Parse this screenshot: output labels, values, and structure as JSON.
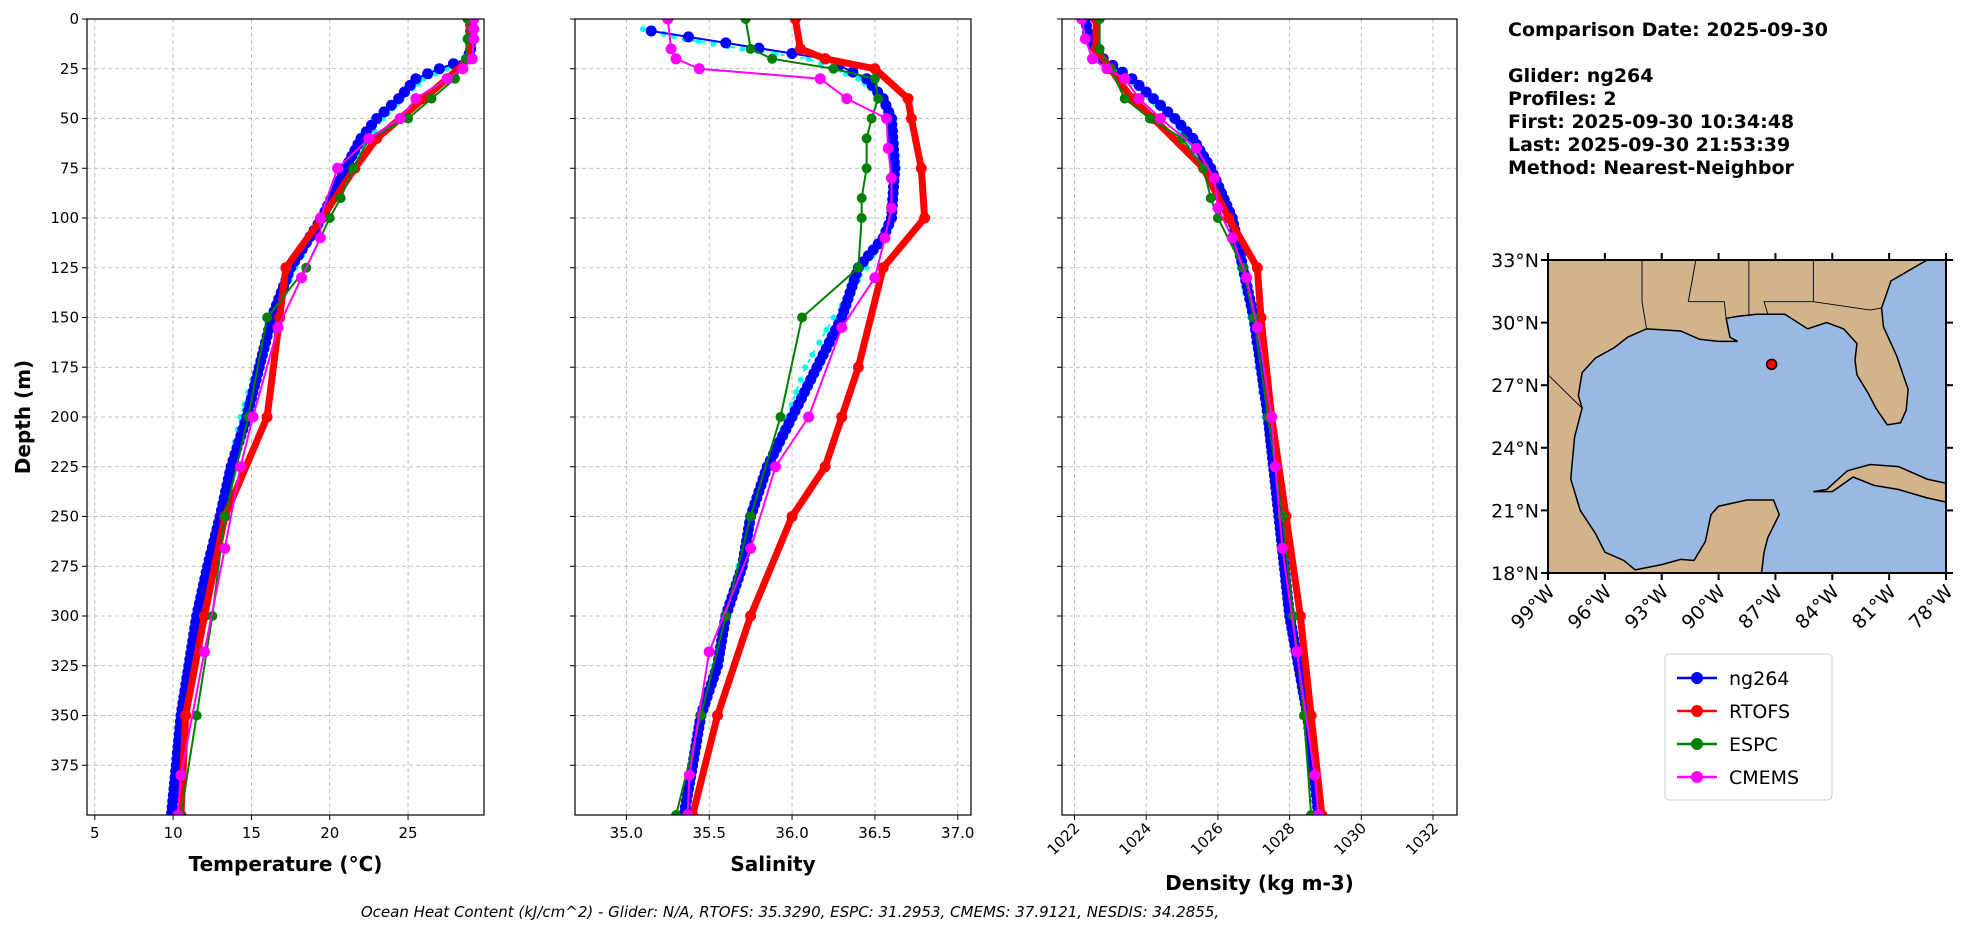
{
  "info": {
    "lines": [
      "Comparison Date: 2025-09-30",
      "",
      "Glider: ng264",
      "Profiles: 2",
      "First: 2025-09-30 10:34:48",
      "Last: 2025-09-30 21:53:39",
      "Method: Nearest-Neighbor"
    ]
  },
  "footer": "Ocean Heat Content (kJ/cm^2) - Glider: N/A,  RTOFS: 35.3290,  ESPC: 31.2953,  CMEMS: 37.9121,  NESDIS: 34.2855,",
  "legend": [
    {
      "label": "ng264",
      "color": "#0000ff"
    },
    {
      "label": "RTOFS",
      "color": "#ff0000"
    },
    {
      "label": "ESPC",
      "color": "#008000"
    },
    {
      "label": "CMEMS",
      "color": "#ff00ff"
    }
  ],
  "chart_data": [
    {
      "type": "line",
      "xlabel": "Temperature (°C)",
      "ylabel": "Depth (m)",
      "xlim": [
        4.5,
        29.85
      ],
      "ylim": [
        400,
        0
      ],
      "grid": true,
      "xticks": [
        "5",
        "10",
        "15",
        "20",
        "25"
      ],
      "yticks": [
        "0",
        "25",
        "50",
        "75",
        "100",
        "125",
        "150",
        "175",
        "200",
        "225",
        "250",
        "275",
        "300",
        "325",
        "350",
        "375"
      ],
      "series": [
        {
          "name": "NESDIS",
          "color": "#00ffff",
          "depth": [
            0,
            10,
            20,
            25,
            30,
            40,
            50,
            75,
            100,
            125,
            150,
            175,
            200,
            225,
            250,
            300,
            350,
            400
          ],
          "values": [
            29,
            29,
            28.9,
            27.5,
            26,
            24.6,
            23.4,
            21.2,
            19.6,
            17.8,
            16.4,
            15.3,
            14.3,
            13.6,
            13,
            11.6,
            10.6,
            10
          ]
        },
        {
          "name": "ng264",
          "color": "#0000ff",
          "depth": [
            0,
            15,
            20,
            25,
            30,
            40,
            50,
            60,
            75,
            100,
            125,
            150,
            175,
            200,
            225,
            250,
            275,
            300,
            325,
            350,
            375,
            399
          ],
          "values": [
            29,
            29,
            28.8,
            27,
            25.5,
            24.4,
            23,
            22,
            21,
            19.5,
            17.5,
            16.3,
            15.5,
            14.7,
            13.7,
            13,
            12.2,
            11.5,
            11,
            10.5,
            10.2,
            9.9
          ]
        },
        {
          "name": "RTOFS",
          "color": "#ff0000",
          "depth": [
            0,
            10,
            20,
            30,
            40,
            50,
            60,
            75,
            100,
            125,
            150,
            200,
            250,
            300,
            350,
            400
          ],
          "values": [
            28.9,
            28.9,
            28.9,
            27.5,
            26,
            24.5,
            23,
            21.6,
            19.5,
            17.2,
            16.8,
            16,
            13.3,
            12,
            10.8,
            10.5
          ]
        },
        {
          "name": "ESPC",
          "color": "#008000",
          "depth": [
            0,
            10,
            20,
            30,
            40,
            50,
            60,
            75,
            90,
            100,
            125,
            150,
            200,
            250,
            300,
            350,
            400
          ],
          "values": [
            28.8,
            28.8,
            28.7,
            28,
            26.5,
            25,
            22.5,
            21.5,
            20.7,
            20,
            18.5,
            16,
            14.8,
            13.3,
            12.5,
            11.5,
            10.5
          ]
        },
        {
          "name": "CMEMS",
          "color": "#ff00ff",
          "depth": [
            0,
            5,
            10,
            20,
            25,
            30,
            40,
            50,
            60,
            75,
            100,
            110,
            130,
            155,
            200,
            225,
            266,
            318,
            380,
            400
          ],
          "values": [
            29.2,
            29.2,
            29.2,
            29.1,
            28.5,
            27.5,
            25.5,
            24.5,
            22.5,
            20.5,
            19.4,
            19.4,
            18.2,
            16.7,
            15.1,
            14.3,
            13.3,
            12,
            10.5,
            10.3
          ]
        }
      ]
    },
    {
      "type": "line",
      "xlabel": "Salinity",
      "ylabel": "",
      "xlim": [
        34.69,
        37.08
      ],
      "ylim": [
        400,
        0
      ],
      "grid": true,
      "xticks": [
        "35.0",
        "35.5",
        "36.0",
        "36.5",
        "37.0"
      ],
      "series": [
        {
          "name": "NESDIS",
          "color": "#00ffff",
          "depth": [
            5,
            10,
            15,
            20,
            30,
            40,
            50,
            75,
            100,
            125,
            150,
            175,
            200,
            225,
            250,
            300,
            350,
            400
          ],
          "values": [
            35.1,
            35.35,
            35.7,
            36.1,
            36.4,
            36.55,
            36.62,
            36.64,
            36.6,
            36.45,
            36.25,
            36.08,
            35.97,
            35.85,
            35.75,
            35.6,
            35.45,
            35.35
          ]
        },
        {
          "name": "ng264",
          "color": "#0000ff",
          "depth": [
            6,
            12,
            20,
            30,
            40,
            50,
            75,
            100,
            110,
            125,
            150,
            175,
            200,
            225,
            250,
            275,
            300,
            325,
            350,
            375,
            399
          ],
          "values": [
            35.15,
            35.6,
            36.2,
            36.45,
            36.55,
            36.6,
            36.62,
            36.6,
            36.55,
            36.4,
            36.3,
            36.15,
            36.0,
            35.85,
            35.75,
            35.7,
            35.6,
            35.55,
            35.45,
            35.4,
            35.35
          ]
        },
        {
          "name": "RTOFS",
          "color": "#ff0000",
          "depth": [
            0,
            15,
            20,
            25,
            40,
            50,
            75,
            100,
            125,
            175,
            200,
            225,
            250,
            300,
            350,
            400
          ],
          "values": [
            36.02,
            36.05,
            36.2,
            36.5,
            36.7,
            36.72,
            36.78,
            36.8,
            36.55,
            36.4,
            36.3,
            36.2,
            36.0,
            35.75,
            35.55,
            35.4
          ]
        },
        {
          "name": "ESPC",
          "color": "#008000",
          "depth": [
            0,
            15,
            20,
            25,
            30,
            40,
            50,
            60,
            75,
            90,
            100,
            125,
            150,
            200,
            250,
            300,
            350,
            400
          ],
          "values": [
            35.72,
            35.75,
            35.88,
            36.25,
            36.5,
            36.52,
            36.48,
            36.45,
            36.45,
            36.42,
            36.42,
            36.4,
            36.06,
            35.93,
            35.75,
            35.6,
            35.45,
            35.3
          ]
        },
        {
          "name": "CMEMS",
          "color": "#ff00ff",
          "depth": [
            0,
            15,
            20,
            25,
            30,
            40,
            50,
            65,
            80,
            95,
            110,
            130,
            155,
            200,
            225,
            266,
            318,
            380,
            400
          ],
          "values": [
            35.25,
            35.27,
            35.3,
            35.44,
            36.17,
            36.33,
            36.57,
            36.58,
            36.6,
            36.6,
            36.56,
            36.5,
            36.3,
            36.1,
            35.9,
            35.75,
            35.5,
            35.38,
            35.37
          ]
        }
      ]
    },
    {
      "type": "line",
      "xlabel": "Density (kg m-3)",
      "ylabel": "",
      "xlim": [
        1021.65,
        1032.67
      ],
      "ylim": [
        400,
        0
      ],
      "grid": true,
      "xticks": [
        "1022",
        "1024",
        "1026",
        "1028",
        "1030",
        "1032"
      ],
      "series": [
        {
          "name": "NESDIS",
          "color": "#00ffff",
          "depth": [
            0,
            10,
            20,
            30,
            40,
            50,
            75,
            100,
            150,
            200,
            250,
            300,
            350,
            400
          ],
          "values": [
            1022.3,
            1022.4,
            1022.8,
            1023.5,
            1024.1,
            1024.7,
            1025.7,
            1026.3,
            1026.9,
            1027.3,
            1027.7,
            1028.0,
            1028.4,
            1028.8
          ]
        },
        {
          "name": "ng264",
          "color": "#0000ff",
          "depth": [
            0,
            10,
            20,
            30,
            40,
            50,
            60,
            75,
            100,
            125,
            150,
            175,
            200,
            250,
            300,
            350,
            399
          ],
          "values": [
            1022.3,
            1022.4,
            1022.8,
            1023.6,
            1024.2,
            1024.8,
            1025.3,
            1025.8,
            1026.4,
            1026.7,
            1027.0,
            1027.2,
            1027.4,
            1027.7,
            1028.0,
            1028.5,
            1028.8
          ]
        },
        {
          "name": "RTOFS",
          "color": "#ff0000",
          "depth": [
            0,
            15,
            25,
            40,
            50,
            75,
            100,
            125,
            150,
            200,
            250,
            300,
            350,
            400
          ],
          "values": [
            1022.6,
            1022.6,
            1023,
            1023.6,
            1024.2,
            1025.6,
            1026.3,
            1027.1,
            1027.2,
            1027.5,
            1027.9,
            1028.3,
            1028.6,
            1028.9
          ]
        },
        {
          "name": "ESPC",
          "color": "#008000",
          "depth": [
            0,
            15,
            25,
            40,
            50,
            60,
            75,
            90,
            100,
            125,
            150,
            200,
            250,
            300,
            350,
            400
          ],
          "values": [
            1022.7,
            1022.7,
            1023.0,
            1023.4,
            1024.1,
            1025.0,
            1025.6,
            1025.8,
            1026.0,
            1026.7,
            1027.0,
            1027.4,
            1027.8,
            1028.1,
            1028.4,
            1028.6
          ]
        },
        {
          "name": "CMEMS",
          "color": "#ff00ff",
          "depth": [
            0,
            10,
            20,
            25,
            30,
            40,
            50,
            65,
            80,
            95,
            110,
            130,
            155,
            200,
            225,
            266,
            318,
            380,
            400
          ],
          "values": [
            1022.2,
            1022.3,
            1022.5,
            1022.9,
            1023.4,
            1023.8,
            1024.4,
            1025.4,
            1025.9,
            1026.0,
            1026.4,
            1026.8,
            1027.1,
            1027.5,
            1027.6,
            1027.8,
            1028.2,
            1028.7,
            1028.8
          ]
        }
      ]
    }
  ],
  "map": {
    "lon_range": [
      -99,
      -78
    ],
    "lat_range": [
      18,
      33
    ],
    "lon_ticks": [
      "99°W",
      "96°W",
      "93°W",
      "90°W",
      "87°W",
      "84°W",
      "81°W",
      "78°W"
    ],
    "lat_ticks": [
      "18°N",
      "21°N",
      "24°N",
      "27°N",
      "30°N",
      "33°N"
    ],
    "land_color": "#d2b48c",
    "water_color": "#99b8e2",
    "glider_position": {
      "lon": -87.2,
      "lat": 28.0
    }
  }
}
